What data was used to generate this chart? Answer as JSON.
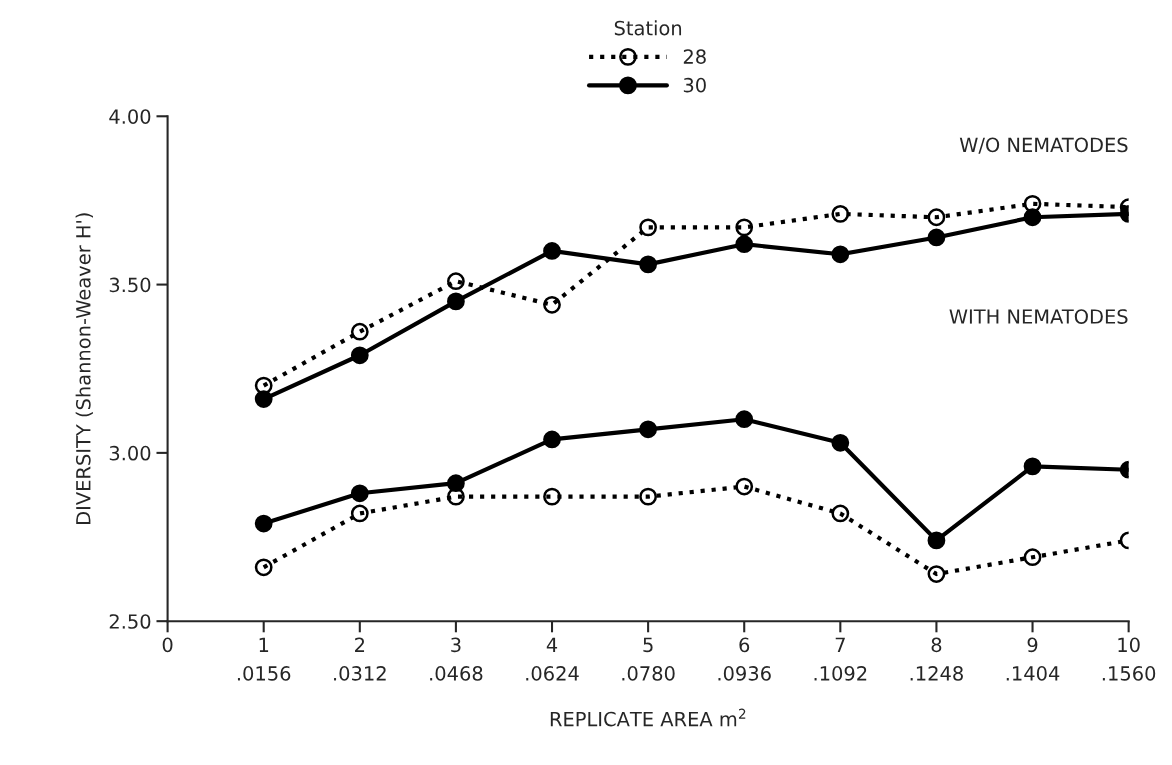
{
  "chart_data": {
    "type": "line",
    "xlabel": "REPLICATE AREA m$^{2}$",
    "ylabel": "DIVERSITY (Shannon-Weaver H')",
    "legend_title": "Station",
    "x": [
      1,
      2,
      3,
      4,
      5,
      6,
      7,
      8,
      9,
      10
    ],
    "series": [
      {
        "name": "28",
        "color": "#000000",
        "line_style": "dotted",
        "marker": "circle",
        "values": [
          3.2,
          3.36,
          3.51,
          3.44,
          3.67,
          3.67,
          3.71,
          3.7,
          3.74,
          3.73
        ]
      },
      {
        "name": "30",
        "color": "#000000",
        "line_style": "solid",
        "marker": "circle",
        "values": [
          3.16,
          3.29,
          3.45,
          3.6,
          3.56,
          3.62,
          3.59,
          3.64,
          3.7,
          3.71
        ]
      },
      {
        "color": "#000000",
        "line_style": "dotted",
        "marker": "circle",
        "values": [
          2.66,
          2.82,
          2.87,
          2.87,
          2.87,
          2.9,
          2.82,
          2.64,
          2.69,
          2.74
        ]
      },
      {
        "color": "#000000",
        "line_style": "solid",
        "marker": "circle",
        "values": [
          2.79,
          2.88,
          2.91,
          3.04,
          3.07,
          3.1,
          3.03,
          2.74,
          2.96,
          2.95
        ]
      }
    ],
    "annotations": [
      "W/O NEMATODES",
      "WITH NEMATODES"
    ],
    "xlim": [
      0,
      10
    ],
    "ylim": [
      2.5,
      4.0
    ],
    "xticks": [
      0,
      1,
      2,
      3,
      4,
      5,
      6,
      7,
      8,
      9,
      10
    ],
    "x2lim": [
      0,
      0.156
    ],
    "x2ticks": [
      {
        "value": 0.0156,
        "label": ".0156"
      },
      {
        "value": 0.0312,
        "label": ".0312"
      },
      {
        "value": 0.0468,
        "label": ".0468"
      },
      {
        "value": 0.0624,
        "label": ".0624"
      },
      {
        "value": 0.078,
        "label": ".0780"
      },
      {
        "value": 0.0936,
        "label": ".0936"
      },
      {
        "value": 0.1092,
        "label": ".1092"
      },
      {
        "value": 0.1248,
        "label": ".1248"
      },
      {
        "value": 0.1404,
        "label": ".1404"
      },
      {
        "value": 0.156,
        "label": ".1560"
      }
    ],
    "yticks": [
      {
        "value": 2.5,
        "label": "2.50"
      },
      {
        "value": 3.0,
        "label": "3.00"
      },
      {
        "value": 3.5,
        "label": "3.50"
      },
      {
        "value": 4.0,
        "label": "4.00"
      }
    ],
    "grid": false,
    "legend": "top"
  }
}
